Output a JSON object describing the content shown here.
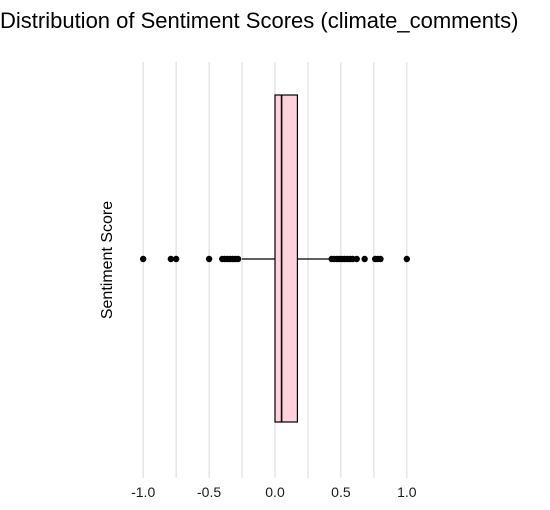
{
  "chart_data": {
    "type": "boxplot",
    "title": "Distribution of Sentiment Scores (climate_comments)",
    "xlabel": "",
    "ylabel": "Sentiment Score",
    "orientation": "horizontal",
    "xlim": [
      -1.1,
      1.1
    ],
    "xticks": [
      -1.0,
      -0.5,
      0.0,
      0.5,
      1.0
    ],
    "xtick_labels": [
      "-1.0",
      "-0.5",
      "0.0",
      "0.5",
      "1.0"
    ],
    "minor_gridlines": [
      -0.75,
      -0.25,
      0.25,
      0.75
    ],
    "grid": "vertical",
    "box": {
      "whisker_low": -0.25,
      "q1": 0.0,
      "median": 0.05,
      "q3": 0.17,
      "whisker_high": 0.42
    },
    "outliers": [
      -1.0,
      -0.79,
      -0.75,
      -0.5,
      -0.4,
      -0.38,
      -0.36,
      -0.34,
      -0.32,
      -0.3,
      -0.28,
      0.43,
      0.45,
      0.47,
      0.49,
      0.51,
      0.53,
      0.55,
      0.57,
      0.59,
      0.62,
      0.68,
      0.76,
      0.78,
      0.8,
      1.0
    ],
    "colors": {
      "box_fill": "#ffd1dc",
      "outline": "#000000",
      "gridline": "#d9d9d9"
    }
  }
}
